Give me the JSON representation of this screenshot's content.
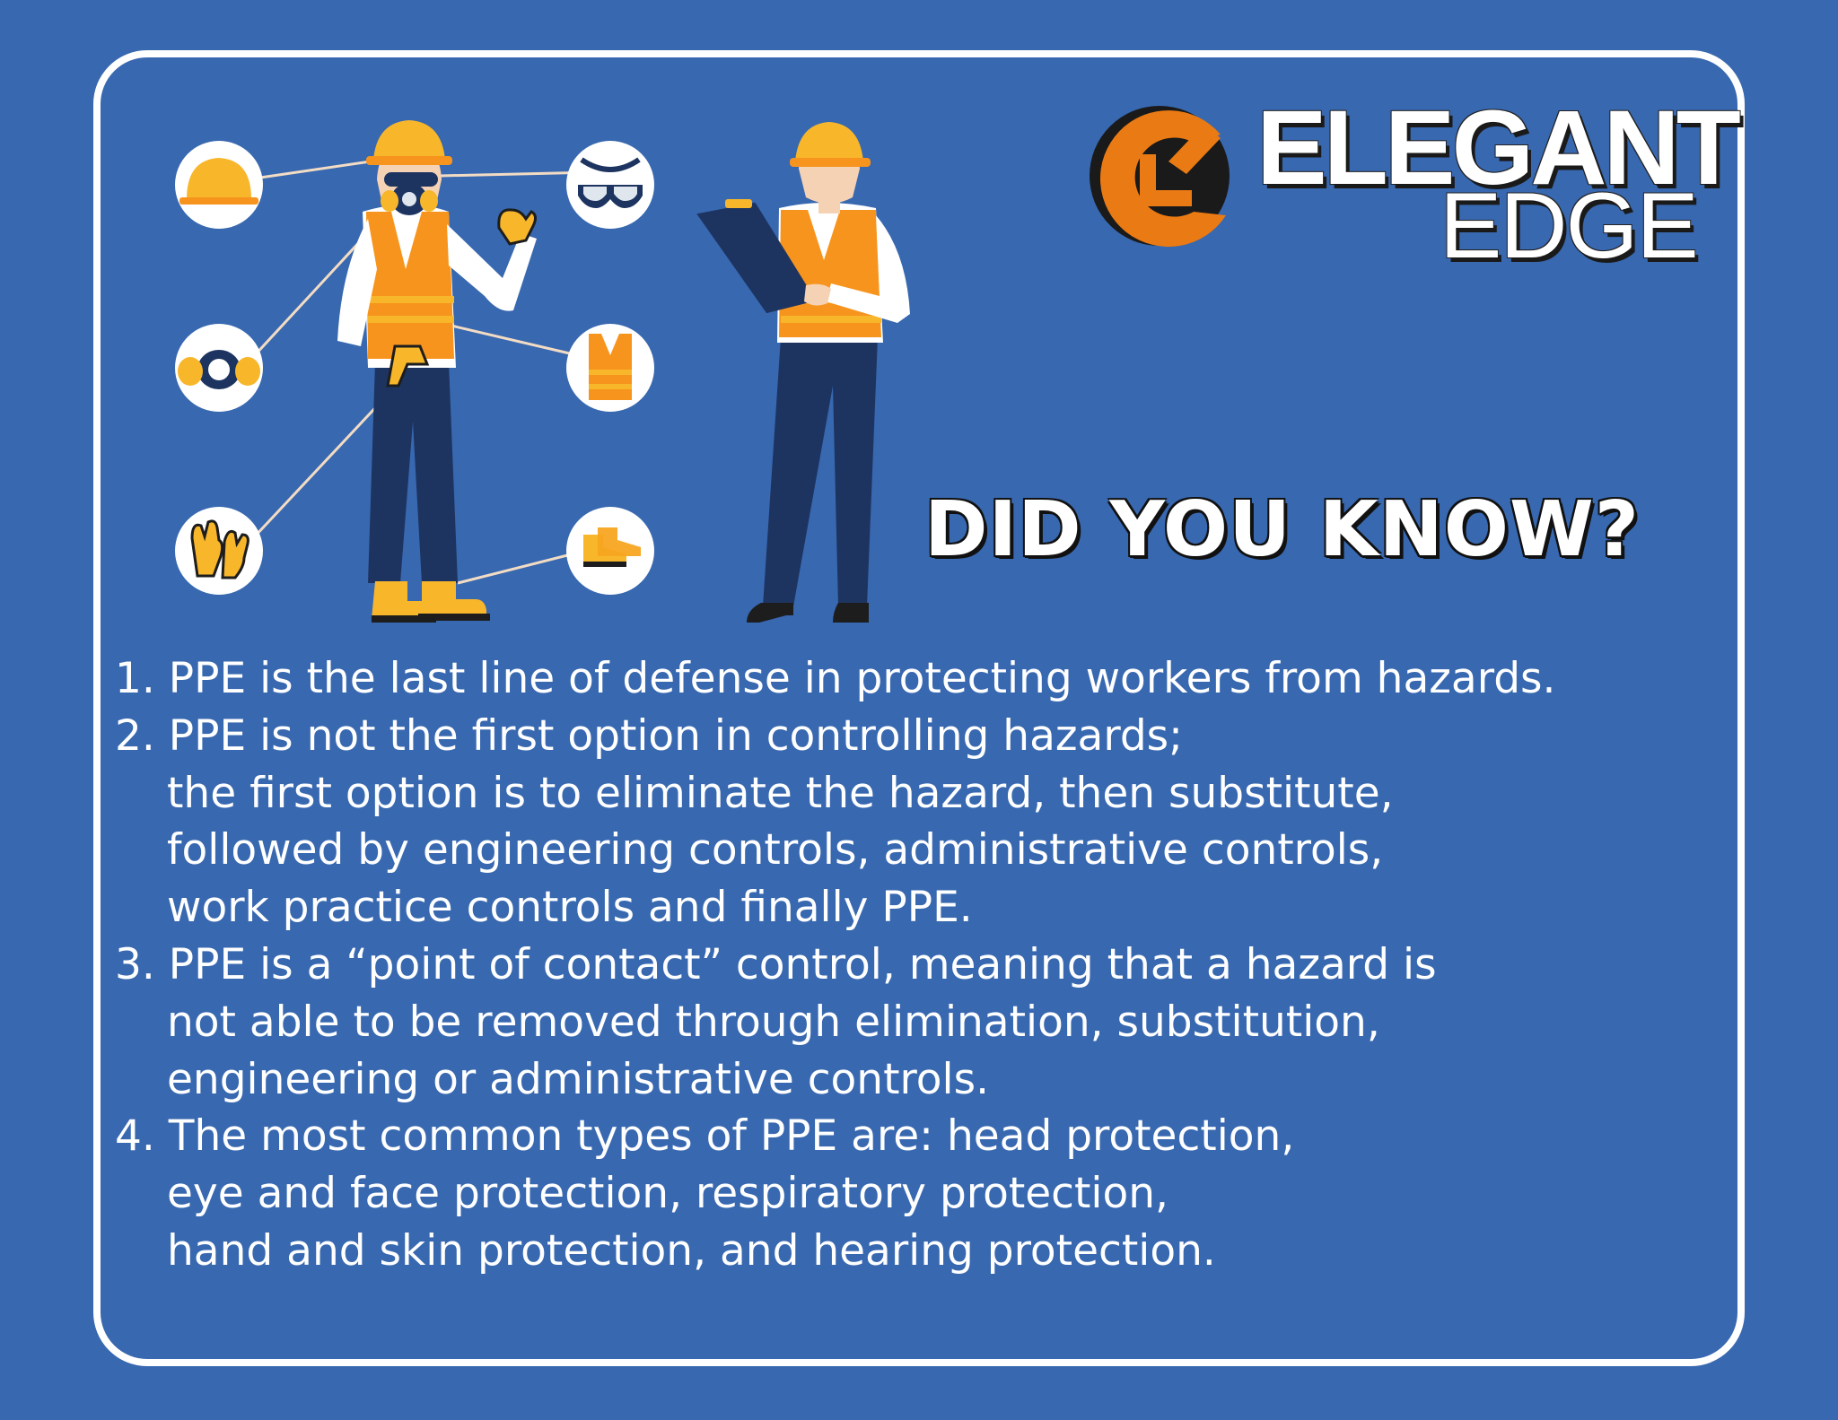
{
  "brand": {
    "line1": "ELEGANT",
    "line2": "EDGE",
    "accent_color": "#ea7a13"
  },
  "headline": "DID YOU KNOW?",
  "facts": [
    {
      "lines": [
        "1.  PPE is the last line of defense in protecting workers from hazards."
      ]
    },
    {
      "lines": [
        "2. PPE is not the first option in controlling hazards;",
        "the first option is to eliminate the hazard, then substitute,",
        "followed by engineering controls, administrative controls,",
        "work practice controls and finally PPE."
      ]
    },
    {
      "lines": [
        "3. PPE is a “point of contact” control, meaning that a hazard is",
        "not able to be removed through elimination, substitution,",
        "engineering or administrative controls."
      ]
    },
    {
      "lines": [
        "4. The most common types of PPE are: head protection,",
        "eye and face protection, respiratory protection,",
        "hand and skin protection, and hearing protection."
      ]
    }
  ],
  "ppe_icons": [
    "hard-hat-icon",
    "safety-goggles-icon",
    "respirator-icon",
    "safety-vest-icon",
    "gloves-icon",
    "safety-boots-icon"
  ],
  "colors": {
    "background": "#3868b0",
    "frame": "#ffffff",
    "orange": "#f7941d",
    "yellow": "#f8b62b",
    "navy": "#1d3461"
  }
}
